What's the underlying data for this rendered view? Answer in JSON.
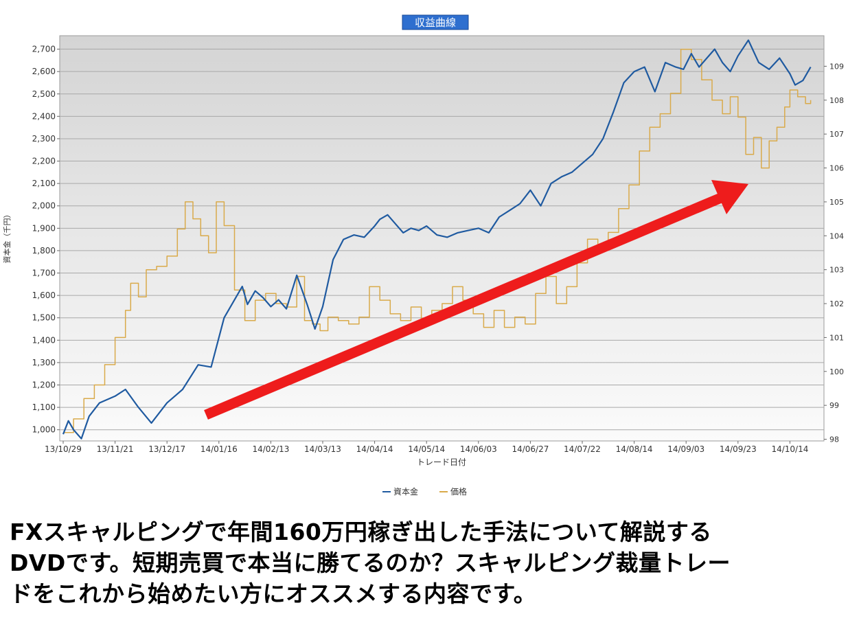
{
  "chart_data": {
    "type": "line",
    "title": "収益曲線",
    "xlabel": "トレード日付",
    "ylabel": "資本金（千円）",
    "x_ticks": [
      "13/10/29",
      "13/11/21",
      "13/12/17",
      "14/01/16",
      "14/02/13",
      "14/03/13",
      "14/04/14",
      "14/05/14",
      "14/06/03",
      "14/06/27",
      "14/07/22",
      "14/08/14",
      "14/09/03",
      "14/09/23",
      "14/10/14"
    ],
    "y_left": {
      "range": [
        950,
        2760
      ],
      "ticks": [
        1000,
        1100,
        1200,
        1300,
        1400,
        1500,
        1600,
        1700,
        1800,
        1900,
        2000,
        2100,
        2200,
        2300,
        2400,
        2500,
        2600,
        2700
      ],
      "tick_labels": [
        "1,000",
        "1,100",
        "1,200",
        "1,300",
        "1,400",
        "1,500",
        "1,600",
        "1,700",
        "1,800",
        "1,900",
        "2,000",
        "2,100",
        "2,200",
        "2,300",
        "2,400",
        "2,500",
        "2,600",
        "2,700"
      ]
    },
    "y_right": {
      "range": [
        97.95,
        109.9
      ],
      "ticks": [
        98,
        99,
        100,
        101,
        102,
        103,
        104,
        105,
        106,
        107,
        108,
        109
      ],
      "tick_labels": [
        "98",
        "99",
        "100",
        "101",
        "102",
        "103",
        "104",
        "105",
        "106",
        "107",
        "108",
        "109"
      ]
    },
    "grid": true,
    "legend_position": "bottom-center",
    "annotation": "upward-trend-arrow",
    "series": [
      {
        "name": "資本金",
        "axis": "left",
        "color": "#1f5aa0",
        "x": [
          0,
          0.1,
          0.2,
          0.35,
          0.5,
          0.7,
          1.0,
          1.2,
          1.45,
          1.7,
          2.0,
          2.3,
          2.6,
          2.85,
          3.1,
          3.3,
          3.45,
          3.55,
          3.7,
          3.85,
          4.0,
          4.15,
          4.3,
          4.5,
          4.7,
          4.85,
          5.0,
          5.2,
          5.4,
          5.6,
          5.8,
          6.0,
          6.1,
          6.25,
          6.4,
          6.55,
          6.7,
          6.85,
          7.0,
          7.2,
          7.4,
          7.6,
          7.8,
          8.0,
          8.2,
          8.4,
          8.6,
          8.8,
          9.0,
          9.2,
          9.4,
          9.6,
          9.8,
          10.0,
          10.2,
          10.4,
          10.6,
          10.8,
          11.0,
          11.2,
          11.4,
          11.6,
          11.8,
          11.95,
          12.1,
          12.25,
          12.4,
          12.55,
          12.7,
          12.85,
          13.0,
          13.2,
          13.4,
          13.6,
          13.8,
          14.0,
          14.1,
          14.25,
          14.4
        ],
        "values": [
          980,
          1040,
          1000,
          960,
          1060,
          1120,
          1150,
          1180,
          1100,
          1030,
          1120,
          1180,
          1290,
          1280,
          1500,
          1580,
          1640,
          1560,
          1620,
          1590,
          1550,
          1580,
          1540,
          1690,
          1560,
          1450,
          1550,
          1760,
          1850,
          1870,
          1860,
          1910,
          1940,
          1960,
          1920,
          1880,
          1900,
          1890,
          1910,
          1870,
          1860,
          1880,
          1890,
          1900,
          1880,
          1950,
          1980,
          2010,
          2070,
          2000,
          2100,
          2130,
          2150,
          2190,
          2230,
          2300,
          2420,
          2550,
          2600,
          2620,
          2510,
          2640,
          2620,
          2610,
          2680,
          2620,
          2660,
          2700,
          2640,
          2600,
          2670,
          2740,
          2640,
          2610,
          2660,
          2590,
          2540,
          2560,
          2620
        ]
      },
      {
        "name": "価格",
        "axis": "right",
        "color": "#d9aa4a",
        "x": [
          0,
          0.2,
          0.4,
          0.6,
          0.8,
          1.0,
          1.2,
          1.3,
          1.45,
          1.6,
          1.8,
          2.0,
          2.2,
          2.35,
          2.5,
          2.65,
          2.8,
          2.95,
          3.1,
          3.3,
          3.5,
          3.7,
          3.9,
          4.1,
          4.3,
          4.5,
          4.65,
          4.8,
          4.95,
          5.1,
          5.3,
          5.5,
          5.7,
          5.9,
          6.1,
          6.3,
          6.5,
          6.7,
          6.9,
          7.1,
          7.3,
          7.5,
          7.7,
          7.9,
          8.1,
          8.3,
          8.5,
          8.7,
          8.9,
          9.1,
          9.3,
          9.5,
          9.7,
          9.9,
          10.1,
          10.3,
          10.5,
          10.7,
          10.9,
          11.1,
          11.3,
          11.5,
          11.7,
          11.9,
          12.1,
          12.3,
          12.5,
          12.7,
          12.85,
          13.0,
          13.15,
          13.3,
          13.45,
          13.6,
          13.75,
          13.9,
          14.0,
          14.15,
          14.3,
          14.4
        ],
        "values": [
          98.2,
          98.6,
          99.2,
          99.6,
          100.2,
          101.0,
          101.8,
          102.6,
          102.2,
          103.0,
          103.1,
          103.4,
          104.2,
          105.0,
          104.5,
          104.0,
          103.5,
          105.0,
          104.3,
          102.4,
          101.5,
          102.1,
          102.3,
          102.0,
          101.9,
          102.8,
          101.5,
          101.4,
          101.2,
          101.6,
          101.5,
          101.4,
          101.6,
          102.5,
          102.1,
          101.7,
          101.5,
          101.9,
          101.5,
          101.8,
          102.0,
          102.5,
          102.1,
          101.7,
          101.3,
          101.8,
          101.3,
          101.6,
          101.4,
          102.3,
          102.8,
          102.0,
          102.5,
          103.2,
          103.9,
          103.6,
          104.1,
          104.8,
          105.5,
          106.5,
          107.2,
          107.6,
          108.2,
          109.5,
          109.2,
          108.6,
          108.0,
          107.6,
          108.1,
          107.5,
          106.4,
          106.9,
          106.0,
          106.8,
          107.2,
          107.8,
          108.3,
          108.1,
          107.9,
          108.0
        ]
      }
    ]
  },
  "legend": {
    "capital_label": "資本金",
    "price_label": "価格"
  },
  "caption": {
    "line1": "FXスキャルピングで年間160万円稼ぎ出した手法について解説する",
    "line2": "DVDです。短期売買で本当に勝てるのか？スキャルピング裁量トレー",
    "line3": "ドをこれから始めたい方にオススメする内容です。"
  }
}
